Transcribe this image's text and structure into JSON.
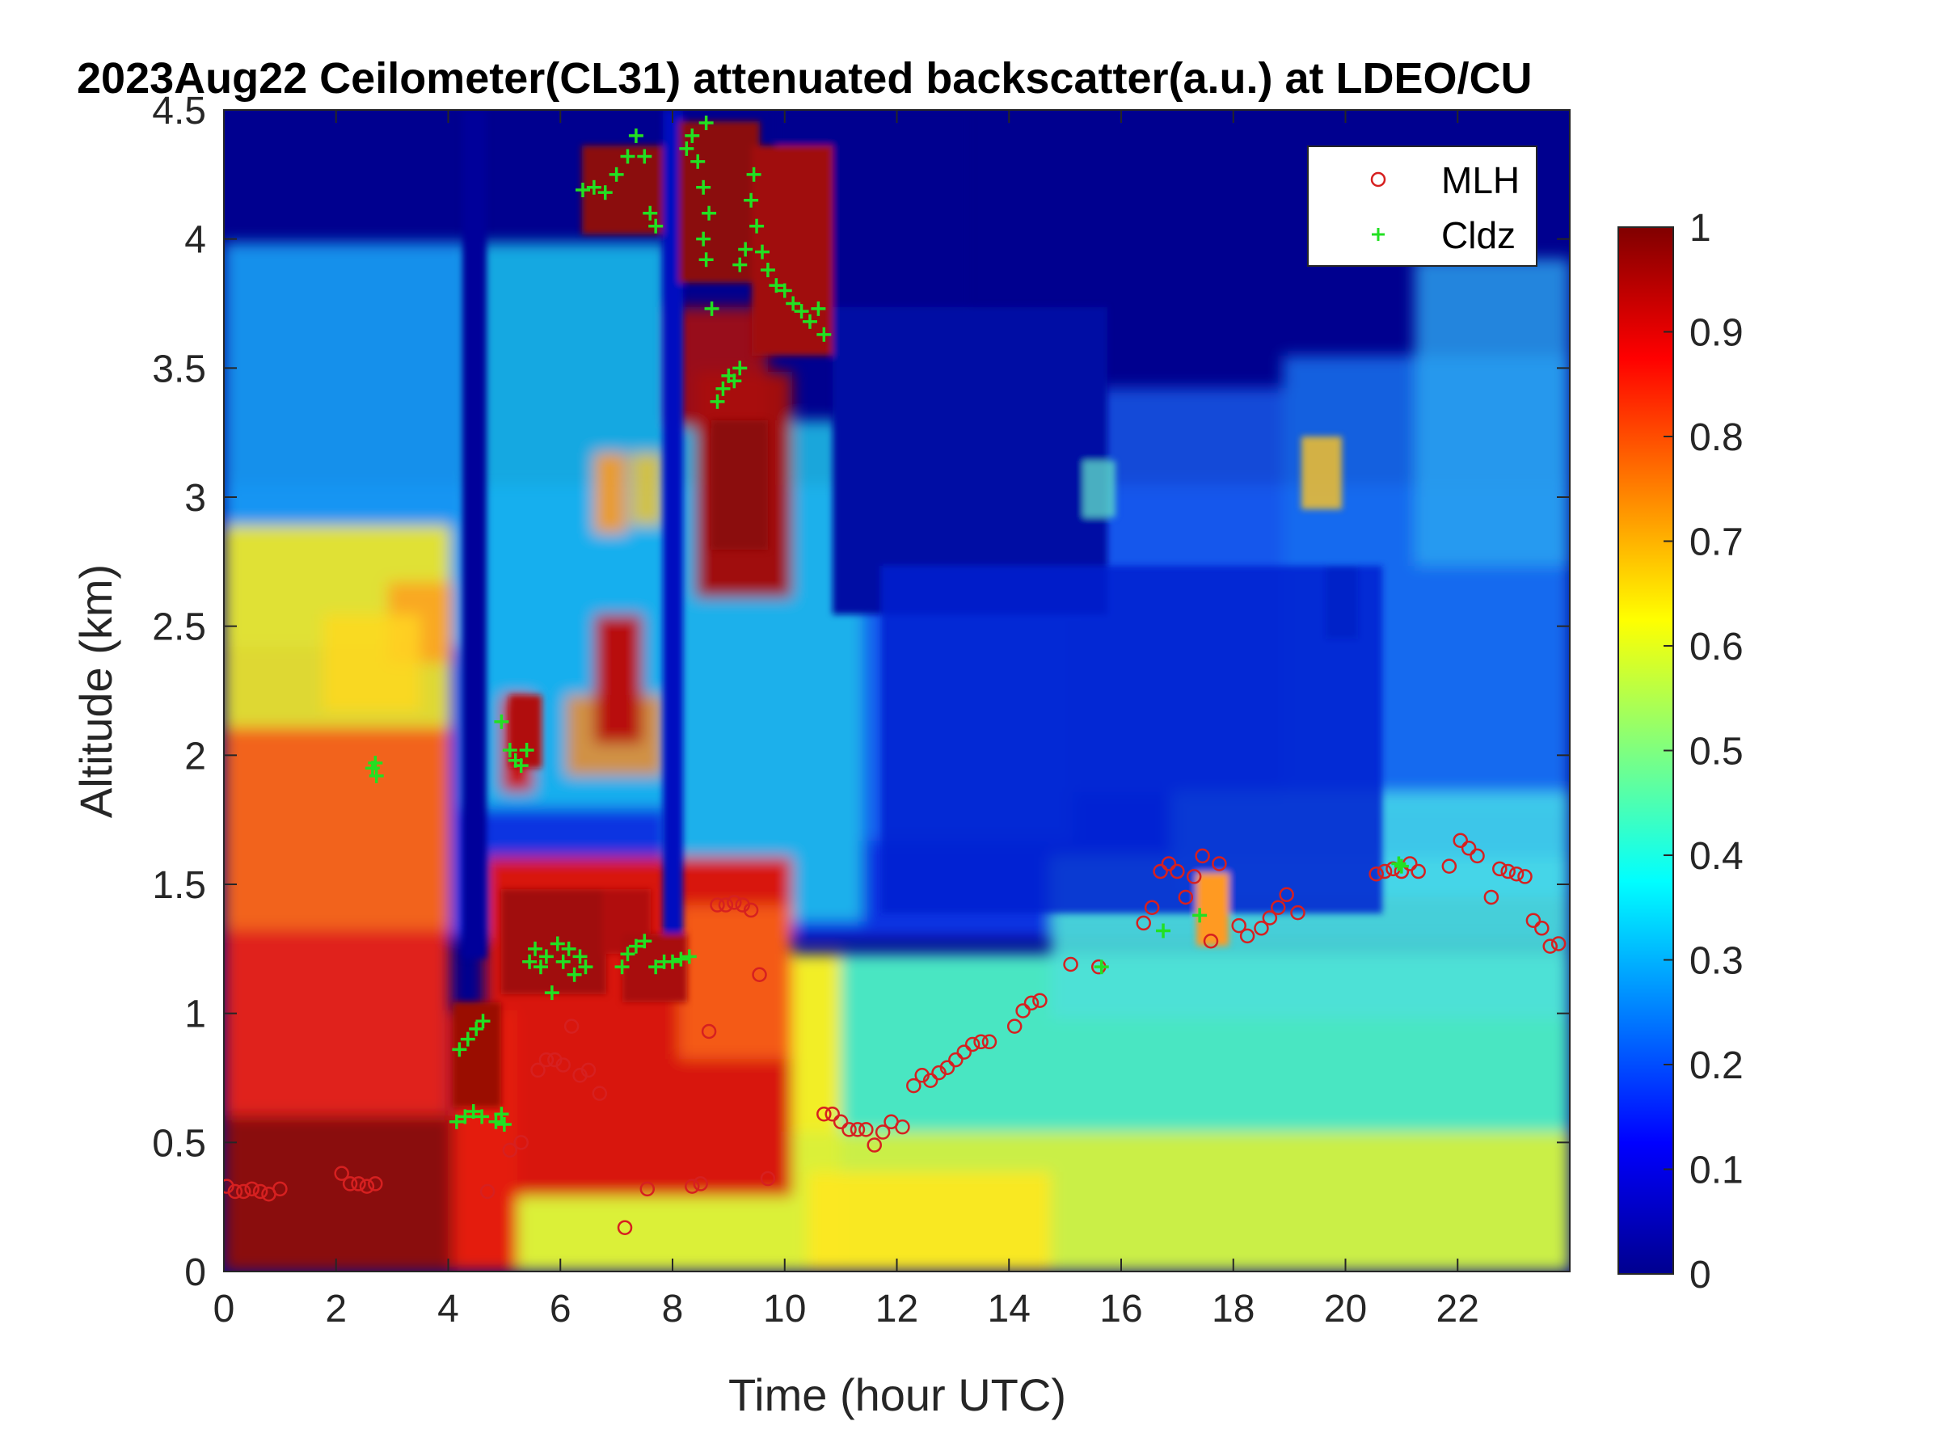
{
  "chart_data": {
    "type": "heatmap",
    "title": "2023Aug22 Ceilometer(CL31) attenuated backscatter(a.u.) at LDEO/CU",
    "xlabel": "Time (hour UTC)",
    "ylabel": "Altitude (km)",
    "xlim": [
      0,
      24
    ],
    "ylim": [
      0,
      4.5
    ],
    "x_ticks": [
      "0",
      "2",
      "4",
      "6",
      "8",
      "10",
      "12",
      "14",
      "16",
      "18",
      "20",
      "22"
    ],
    "y_ticks": [
      "0",
      "0.5",
      "1",
      "1.5",
      "2",
      "2.5",
      "3",
      "3.5",
      "4",
      "4.5"
    ],
    "colorbar": {
      "ticks": [
        "0",
        "0.1",
        "0.2",
        "0.3",
        "0.4",
        "0.5",
        "0.6",
        "0.7",
        "0.8",
        "0.9",
        "1"
      ],
      "range": [
        0,
        1
      ],
      "colormap": "jet"
    },
    "legend": {
      "placement": "top-right",
      "entries": [
        "MLH",
        "Cldz"
      ]
    },
    "series": [
      {
        "name": "MLH",
        "marker": "circle",
        "color": "#d62020",
        "points": [
          [
            0.05,
            0.33
          ],
          [
            0.2,
            0.31
          ],
          [
            0.35,
            0.31
          ],
          [
            0.5,
            0.32
          ],
          [
            0.65,
            0.31
          ],
          [
            0.8,
            0.3
          ],
          [
            1.0,
            0.32
          ],
          [
            2.1,
            0.38
          ],
          [
            2.25,
            0.34
          ],
          [
            2.4,
            0.34
          ],
          [
            2.55,
            0.33
          ],
          [
            2.7,
            0.34
          ],
          [
            4.7,
            0.31
          ],
          [
            5.1,
            0.47
          ],
          [
            5.3,
            0.5
          ],
          [
            5.6,
            0.78
          ],
          [
            5.75,
            0.82
          ],
          [
            5.9,
            0.82
          ],
          [
            6.05,
            0.8
          ],
          [
            6.2,
            0.95
          ],
          [
            6.35,
            0.76
          ],
          [
            6.5,
            0.78
          ],
          [
            6.7,
            0.69
          ],
          [
            7.15,
            0.17
          ],
          [
            7.55,
            0.32
          ],
          [
            8.35,
            0.33
          ],
          [
            8.5,
            0.34
          ],
          [
            8.65,
            0.93
          ],
          [
            8.8,
            1.42
          ],
          [
            8.95,
            1.42
          ],
          [
            9.1,
            1.43
          ],
          [
            9.25,
            1.42
          ],
          [
            9.4,
            1.4
          ],
          [
            9.55,
            1.15
          ],
          [
            9.7,
            0.36
          ],
          [
            10.7,
            0.61
          ],
          [
            10.85,
            0.61
          ],
          [
            11.0,
            0.58
          ],
          [
            11.15,
            0.55
          ],
          [
            11.3,
            0.55
          ],
          [
            11.45,
            0.55
          ],
          [
            11.6,
            0.49
          ],
          [
            11.75,
            0.54
          ],
          [
            11.9,
            0.58
          ],
          [
            12.1,
            0.56
          ],
          [
            12.3,
            0.72
          ],
          [
            12.45,
            0.76
          ],
          [
            12.6,
            0.74
          ],
          [
            12.75,
            0.77
          ],
          [
            12.9,
            0.79
          ],
          [
            13.05,
            0.82
          ],
          [
            13.2,
            0.85
          ],
          [
            13.35,
            0.88
          ],
          [
            13.5,
            0.89
          ],
          [
            13.65,
            0.89
          ],
          [
            14.1,
            0.95
          ],
          [
            14.25,
            1.01
          ],
          [
            14.4,
            1.04
          ],
          [
            14.55,
            1.05
          ],
          [
            15.1,
            1.19
          ],
          [
            15.6,
            1.18
          ],
          [
            16.4,
            1.35
          ],
          [
            16.55,
            1.41
          ],
          [
            16.7,
            1.55
          ],
          [
            16.85,
            1.58
          ],
          [
            17.0,
            1.55
          ],
          [
            17.15,
            1.45
          ],
          [
            17.3,
            1.53
          ],
          [
            17.45,
            1.61
          ],
          [
            17.6,
            1.28
          ],
          [
            17.75,
            1.58
          ],
          [
            18.1,
            1.34
          ],
          [
            18.25,
            1.3
          ],
          [
            18.5,
            1.33
          ],
          [
            18.65,
            1.37
          ],
          [
            18.8,
            1.41
          ],
          [
            18.95,
            1.46
          ],
          [
            19.15,
            1.39
          ],
          [
            20.55,
            1.54
          ],
          [
            20.7,
            1.55
          ],
          [
            20.85,
            1.56
          ],
          [
            21.0,
            1.55
          ],
          [
            21.15,
            1.58
          ],
          [
            21.3,
            1.55
          ],
          [
            21.85,
            1.57
          ],
          [
            22.05,
            1.67
          ],
          [
            22.2,
            1.64
          ],
          [
            22.35,
            1.61
          ],
          [
            22.6,
            1.45
          ],
          [
            22.75,
            1.56
          ],
          [
            22.9,
            1.55
          ],
          [
            23.05,
            1.54
          ],
          [
            23.2,
            1.53
          ],
          [
            23.35,
            1.36
          ],
          [
            23.5,
            1.33
          ],
          [
            23.65,
            1.26
          ],
          [
            23.8,
            1.27
          ]
        ]
      },
      {
        "name": "Cldz",
        "marker": "plus",
        "color": "#22e022",
        "points": [
          [
            2.65,
            1.95
          ],
          [
            2.7,
            1.97
          ],
          [
            2.72,
            1.92
          ],
          [
            4.15,
            0.58
          ],
          [
            4.3,
            0.6
          ],
          [
            4.45,
            0.62
          ],
          [
            4.6,
            0.6
          ],
          [
            4.85,
            0.58
          ],
          [
            4.95,
            0.61
          ],
          [
            5.0,
            0.57
          ],
          [
            4.2,
            0.86
          ],
          [
            4.35,
            0.9
          ],
          [
            4.5,
            0.94
          ],
          [
            4.62,
            0.97
          ],
          [
            4.95,
            2.13
          ],
          [
            5.1,
            2.02
          ],
          [
            5.2,
            1.98
          ],
          [
            5.3,
            1.96
          ],
          [
            5.4,
            2.02
          ],
          [
            5.45,
            1.2
          ],
          [
            5.55,
            1.25
          ],
          [
            5.65,
            1.18
          ],
          [
            5.75,
            1.22
          ],
          [
            5.85,
            1.08
          ],
          [
            5.95,
            1.27
          ],
          [
            6.05,
            1.2
          ],
          [
            6.15,
            1.25
          ],
          [
            6.25,
            1.15
          ],
          [
            6.35,
            1.22
          ],
          [
            6.45,
            1.18
          ],
          [
            7.1,
            1.18
          ],
          [
            7.2,
            1.23
          ],
          [
            7.35,
            1.26
          ],
          [
            7.5,
            1.28
          ],
          [
            7.7,
            1.18
          ],
          [
            7.85,
            1.2
          ],
          [
            8.0,
            1.2
          ],
          [
            8.15,
            1.21
          ],
          [
            8.3,
            1.22
          ],
          [
            6.4,
            4.19
          ],
          [
            6.6,
            4.2
          ],
          [
            6.8,
            4.18
          ],
          [
            7.0,
            4.25
          ],
          [
            7.2,
            4.32
          ],
          [
            7.35,
            4.4
          ],
          [
            7.5,
            4.32
          ],
          [
            7.6,
            4.1
          ],
          [
            7.7,
            4.05
          ],
          [
            8.25,
            4.35
          ],
          [
            8.35,
            4.4
          ],
          [
            8.45,
            4.3
          ],
          [
            8.55,
            4.2
          ],
          [
            8.6,
            4.45
          ],
          [
            8.65,
            4.1
          ],
          [
            8.55,
            4.0
          ],
          [
            8.6,
            3.92
          ],
          [
            8.7,
            3.73
          ],
          [
            8.8,
            3.37
          ],
          [
            8.9,
            3.42
          ],
          [
            9.0,
            3.47
          ],
          [
            9.1,
            3.45
          ],
          [
            9.2,
            3.5
          ],
          [
            9.2,
            3.9
          ],
          [
            9.3,
            3.96
          ],
          [
            9.4,
            4.15
          ],
          [
            9.45,
            4.25
          ],
          [
            9.5,
            4.05
          ],
          [
            9.6,
            3.95
          ],
          [
            9.7,
            3.88
          ],
          [
            9.85,
            3.82
          ],
          [
            10.0,
            3.8
          ],
          [
            10.15,
            3.75
          ],
          [
            10.3,
            3.72
          ],
          [
            10.45,
            3.68
          ],
          [
            10.6,
            3.73
          ],
          [
            10.7,
            3.63
          ],
          [
            15.65,
            1.18
          ],
          [
            16.75,
            1.32
          ],
          [
            17.4,
            1.38
          ],
          [
            20.95,
            1.58
          ],
          [
            21.0,
            1.57
          ]
        ]
      }
    ]
  }
}
